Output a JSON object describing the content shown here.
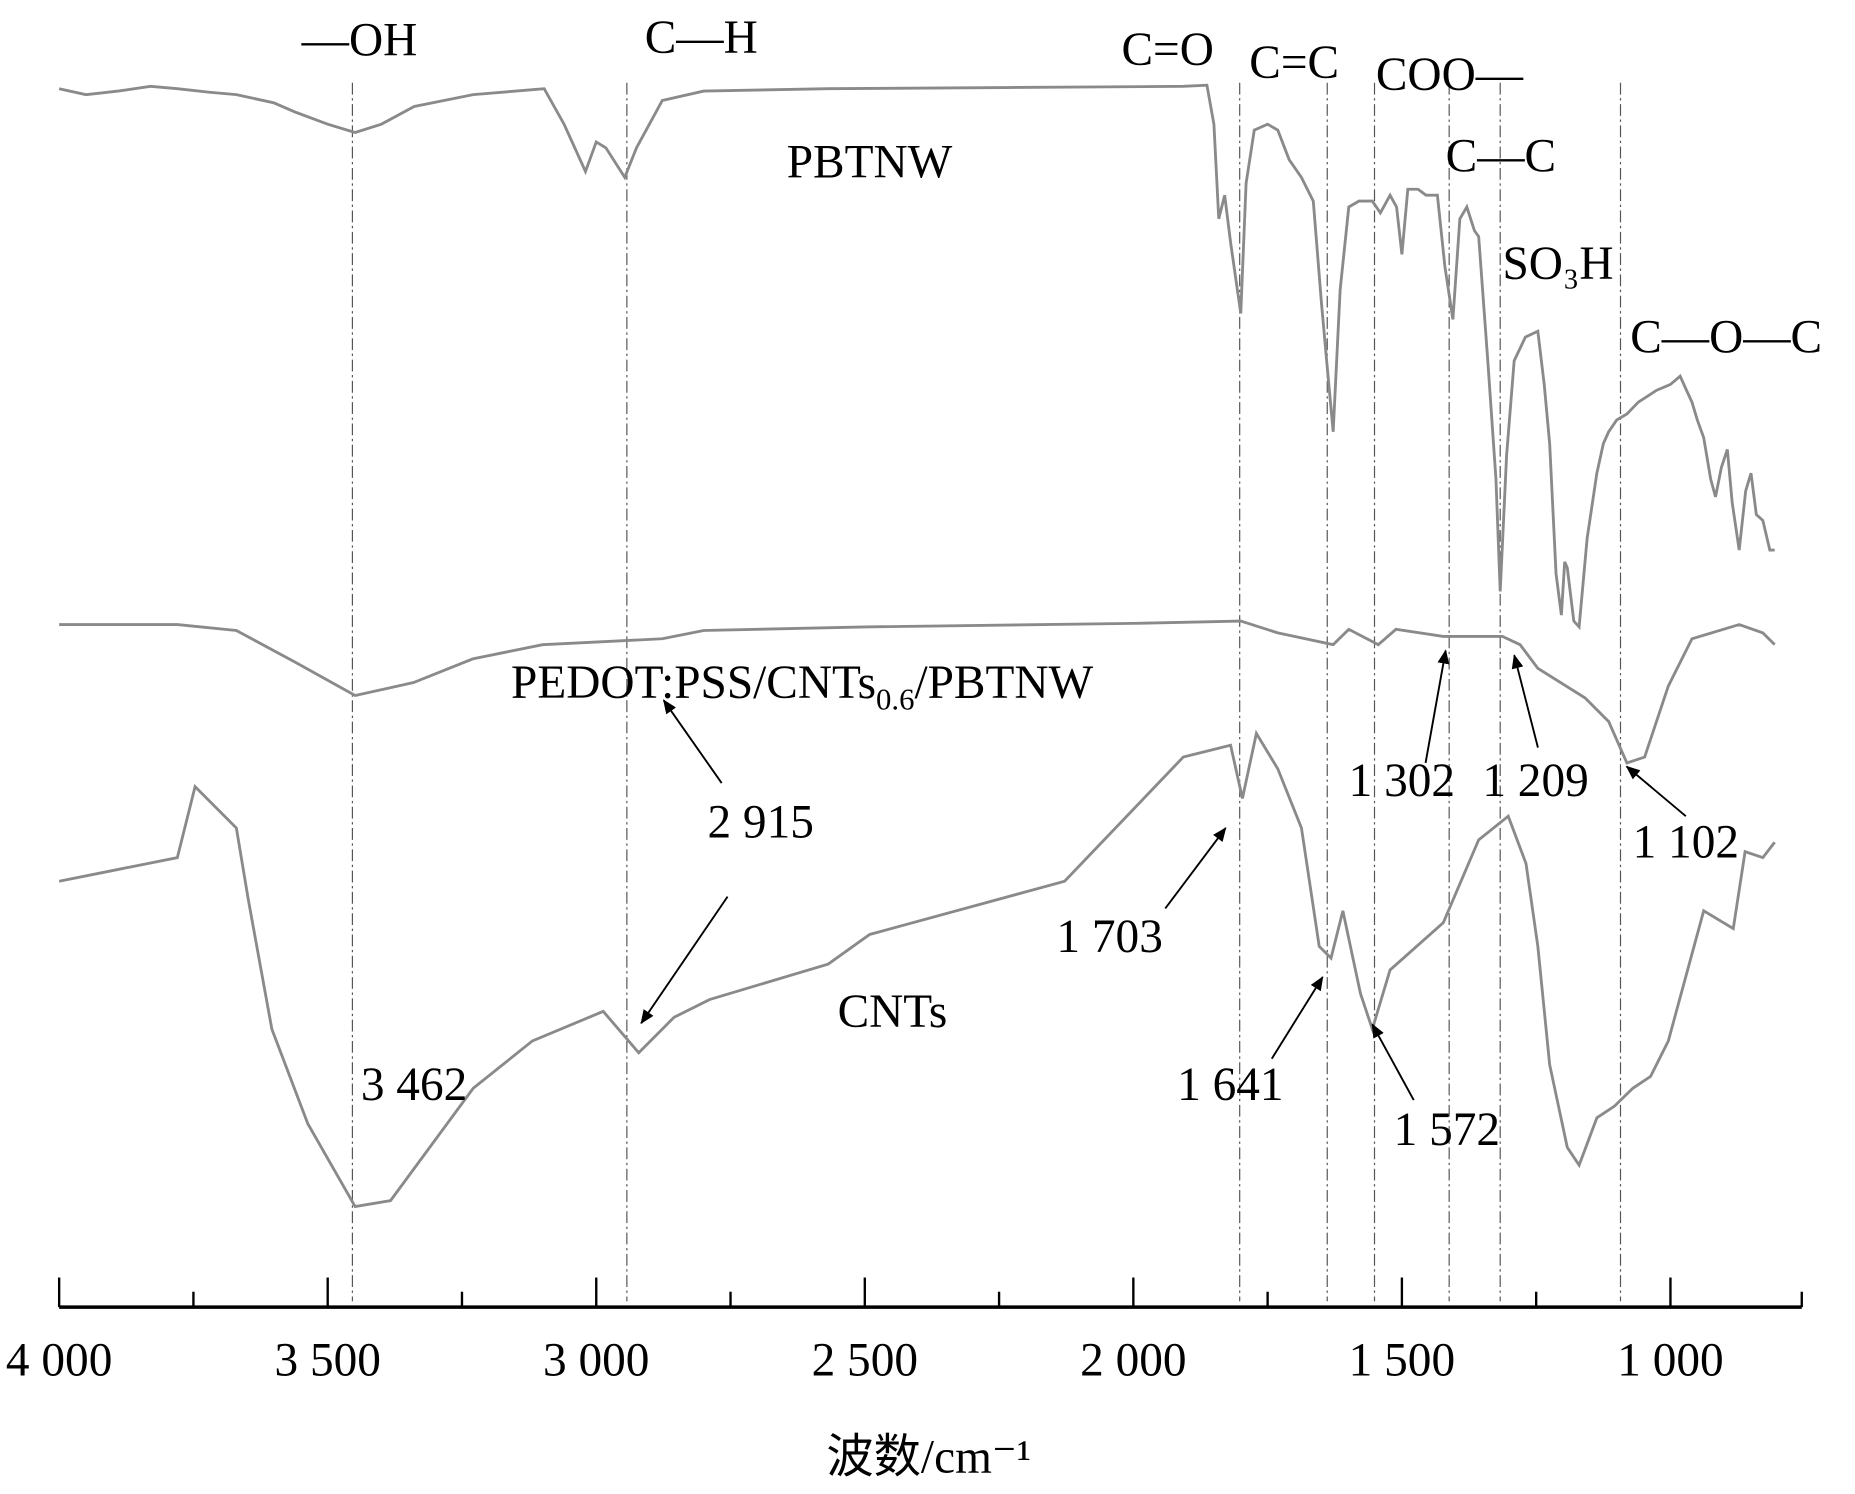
{
  "chart_data": {
    "type": "line",
    "title": "",
    "xlabel": "波数/cm⁻¹",
    "ylabel": "",
    "xlim": [
      4000,
      750
    ],
    "x_reversed": true,
    "ylim": [
      0,
      110
    ],
    "grid": false,
    "xticks": [
      {
        "value": 4000,
        "label": "4 000"
      },
      {
        "value": 3500,
        "label": "3 500"
      },
      {
        "value": 3000,
        "label": "3 000"
      },
      {
        "value": 2500,
        "label": "2 500"
      },
      {
        "value": 2000,
        "label": "2 000"
      },
      {
        "value": 1500,
        "label": "1 500"
      },
      {
        "value": 1000,
        "label": "1 000"
      }
    ],
    "minor_ticks": [
      3750,
      3250,
      2750,
      2250,
      1750,
      1250
    ],
    "series": [
      {
        "name": "PBTNW",
        "label": "PBTNW",
        "points": [
          [
            4000,
            103
          ],
          [
            3950,
            102.5
          ],
          [
            3890,
            102.8
          ],
          [
            3830,
            103.2
          ],
          [
            3780,
            103
          ],
          [
            3720,
            102.7
          ],
          [
            3670,
            102.5
          ],
          [
            3600,
            101.8
          ],
          [
            3559,
            101
          ],
          [
            3500,
            100
          ],
          [
            3449,
            99.3
          ],
          [
            3400,
            100
          ],
          [
            3339,
            101.5
          ],
          [
            3229,
            102.5
          ],
          [
            3150,
            102.8
          ],
          [
            3097,
            103
          ],
          [
            3060,
            100
          ],
          [
            3020,
            96
          ],
          [
            3000,
            98.5
          ],
          [
            2982,
            98
          ],
          [
            2947,
            95.5
          ],
          [
            2925,
            98
          ],
          [
            2877,
            102
          ],
          [
            2800,
            102.8
          ],
          [
            2568,
            103
          ],
          [
            2238,
            103.1
          ],
          [
            1907,
            103.2
          ],
          [
            1863,
            103.3
          ],
          [
            1850,
            100
          ],
          [
            1841,
            92
          ],
          [
            1830,
            94
          ],
          [
            1819,
            90
          ],
          [
            1800,
            84
          ],
          [
            1790,
            95
          ],
          [
            1775,
            99.5
          ],
          [
            1750,
            100
          ],
          [
            1731,
            99.5
          ],
          [
            1710,
            97
          ],
          [
            1687,
            95.5
          ],
          [
            1665,
            93.5
          ],
          [
            1650,
            85
          ],
          [
            1640,
            80
          ],
          [
            1628,
            74
          ],
          [
            1615,
            86
          ],
          [
            1599,
            93
          ],
          [
            1580,
            93.5
          ],
          [
            1555,
            93.5
          ],
          [
            1540,
            92.5
          ],
          [
            1522,
            94
          ],
          [
            1510,
            93
          ],
          [
            1500,
            89
          ],
          [
            1489,
            94.5
          ],
          [
            1470,
            94.5
          ],
          [
            1455,
            94
          ],
          [
            1434,
            94
          ],
          [
            1420,
            88
          ],
          [
            1405,
            83.5
          ],
          [
            1392,
            92
          ],
          [
            1379,
            93
          ],
          [
            1365,
            91
          ],
          [
            1357,
            90.5
          ],
          [
            1340,
            80
          ],
          [
            1325,
            70
          ],
          [
            1317,
            60.5
          ],
          [
            1305,
            72
          ],
          [
            1291,
            80
          ],
          [
            1270,
            82
          ],
          [
            1247,
            82.5
          ],
          [
            1235,
            78
          ],
          [
            1225,
            73
          ],
          [
            1213,
            62
          ],
          [
            1203,
            58.5
          ],
          [
            1197,
            63
          ],
          [
            1192,
            62.5
          ],
          [
            1180,
            58
          ],
          [
            1170,
            57.5
          ],
          [
            1155,
            65
          ],
          [
            1137,
            70.5
          ],
          [
            1125,
            73
          ],
          [
            1115,
            74
          ],
          [
            1100,
            75
          ],
          [
            1081,
            75.5
          ],
          [
            1060,
            76.5
          ],
          [
            1026,
            77.5
          ],
          [
            1000,
            78
          ],
          [
            982,
            78.7
          ],
          [
            970,
            77.5
          ],
          [
            960,
            76.5
          ],
          [
            950,
            75
          ],
          [
            938,
            73.5
          ],
          [
            925,
            70
          ],
          [
            916,
            68.5
          ],
          [
            905,
            71
          ],
          [
            894,
            72.5
          ],
          [
            885,
            68
          ],
          [
            872,
            64
          ],
          [
            860,
            69
          ],
          [
            850,
            70.5
          ],
          [
            840,
            67
          ],
          [
            828,
            66.5
          ],
          [
            815,
            64
          ],
          [
            806,
            64
          ]
        ]
      },
      {
        "name": "PEDOT:PSS/CNTs0.6/PBTNW",
        "label_main": "PEDOT:PSS/CNTs",
        "label_sub": "0.6",
        "label_tail": "/PBTNW",
        "points": [
          [
            4000,
            57.7
          ],
          [
            3780,
            57.7
          ],
          [
            3670,
            57.2
          ],
          [
            3560,
            54.5
          ],
          [
            3449,
            51.7
          ],
          [
            3340,
            52.8
          ],
          [
            3230,
            54.8
          ],
          [
            3100,
            56
          ],
          [
            2877,
            56.5
          ],
          [
            2800,
            57.2
          ],
          [
            2500,
            57.5
          ],
          [
            2000,
            57.8
          ],
          [
            1800,
            58
          ],
          [
            1731,
            57
          ],
          [
            1628,
            56
          ],
          [
            1599,
            57.3
          ],
          [
            1544,
            56
          ],
          [
            1511,
            57.3
          ],
          [
            1423,
            56.7
          ],
          [
            1313,
            56.7
          ],
          [
            1280,
            56
          ],
          [
            1247,
            54
          ],
          [
            1159,
            51.5
          ],
          [
            1115,
            49.5
          ],
          [
            1081,
            46
          ],
          [
            1048,
            46.5
          ],
          [
            1004,
            52.5
          ],
          [
            960,
            56.5
          ],
          [
            872,
            57.7
          ],
          [
            828,
            57
          ],
          [
            806,
            56
          ]
        ]
      },
      {
        "name": "CNTs",
        "label": "CNTs",
        "points": [
          [
            4000,
            36
          ],
          [
            3890,
            37
          ],
          [
            3780,
            38
          ],
          [
            3747,
            44
          ],
          [
            3670,
            40.5
          ],
          [
            3648,
            34.5
          ],
          [
            3604,
            23.5
          ],
          [
            3537,
            15.5
          ],
          [
            3449,
            8.5
          ],
          [
            3383,
            9
          ],
          [
            3229,
            18.5
          ],
          [
            3119,
            22.5
          ],
          [
            2987,
            25
          ],
          [
            2921,
            21.5
          ],
          [
            2855,
            24.5
          ],
          [
            2789,
            26
          ],
          [
            2568,
            29
          ],
          [
            2491,
            31.5
          ],
          [
            2128,
            36
          ],
          [
            1907,
            46.5
          ],
          [
            1819,
            47.5
          ],
          [
            1797,
            43
          ],
          [
            1771,
            48.5
          ],
          [
            1731,
            45.5
          ],
          [
            1687,
            40.5
          ],
          [
            1654,
            30.5
          ],
          [
            1632,
            29.5
          ],
          [
            1610,
            33.5
          ],
          [
            1577,
            26.5
          ],
          [
            1555,
            23.5
          ],
          [
            1522,
            28.5
          ],
          [
            1423,
            32.5
          ],
          [
            1357,
            39.5
          ],
          [
            1302,
            41.5
          ],
          [
            1269,
            37.5
          ],
          [
            1247,
            30.5
          ],
          [
            1225,
            20.5
          ],
          [
            1192,
            13.5
          ],
          [
            1170,
            12
          ],
          [
            1137,
            16
          ],
          [
            1104,
            17
          ],
          [
            1070,
            18.5
          ],
          [
            1037,
            19.5
          ],
          [
            1004,
            22.5
          ],
          [
            938,
            33.5
          ],
          [
            883,
            32
          ],
          [
            861,
            38.5
          ],
          [
            828,
            38
          ],
          [
            806,
            39.3
          ]
        ]
      }
    ],
    "group_lines": [
      {
        "label": "—OH",
        "x": 3454
      },
      {
        "label": "C—H",
        "x": 2943
      },
      {
        "label": "C=O",
        "x": 1802
      },
      {
        "label": "C=C",
        "x": 1639
      },
      {
        "label": "COO—",
        "x": 1551
      },
      {
        "label": "C—C",
        "x": 1412
      },
      {
        "label": "SO₃H",
        "x": 1317
      },
      {
        "label": "C—O—C",
        "x": 1093
      }
    ],
    "peak_labels": [
      "2 915",
      "3 462",
      "1 703",
      "1 641",
      "1 572",
      "1 302",
      "1 209",
      "1 102"
    ]
  }
}
